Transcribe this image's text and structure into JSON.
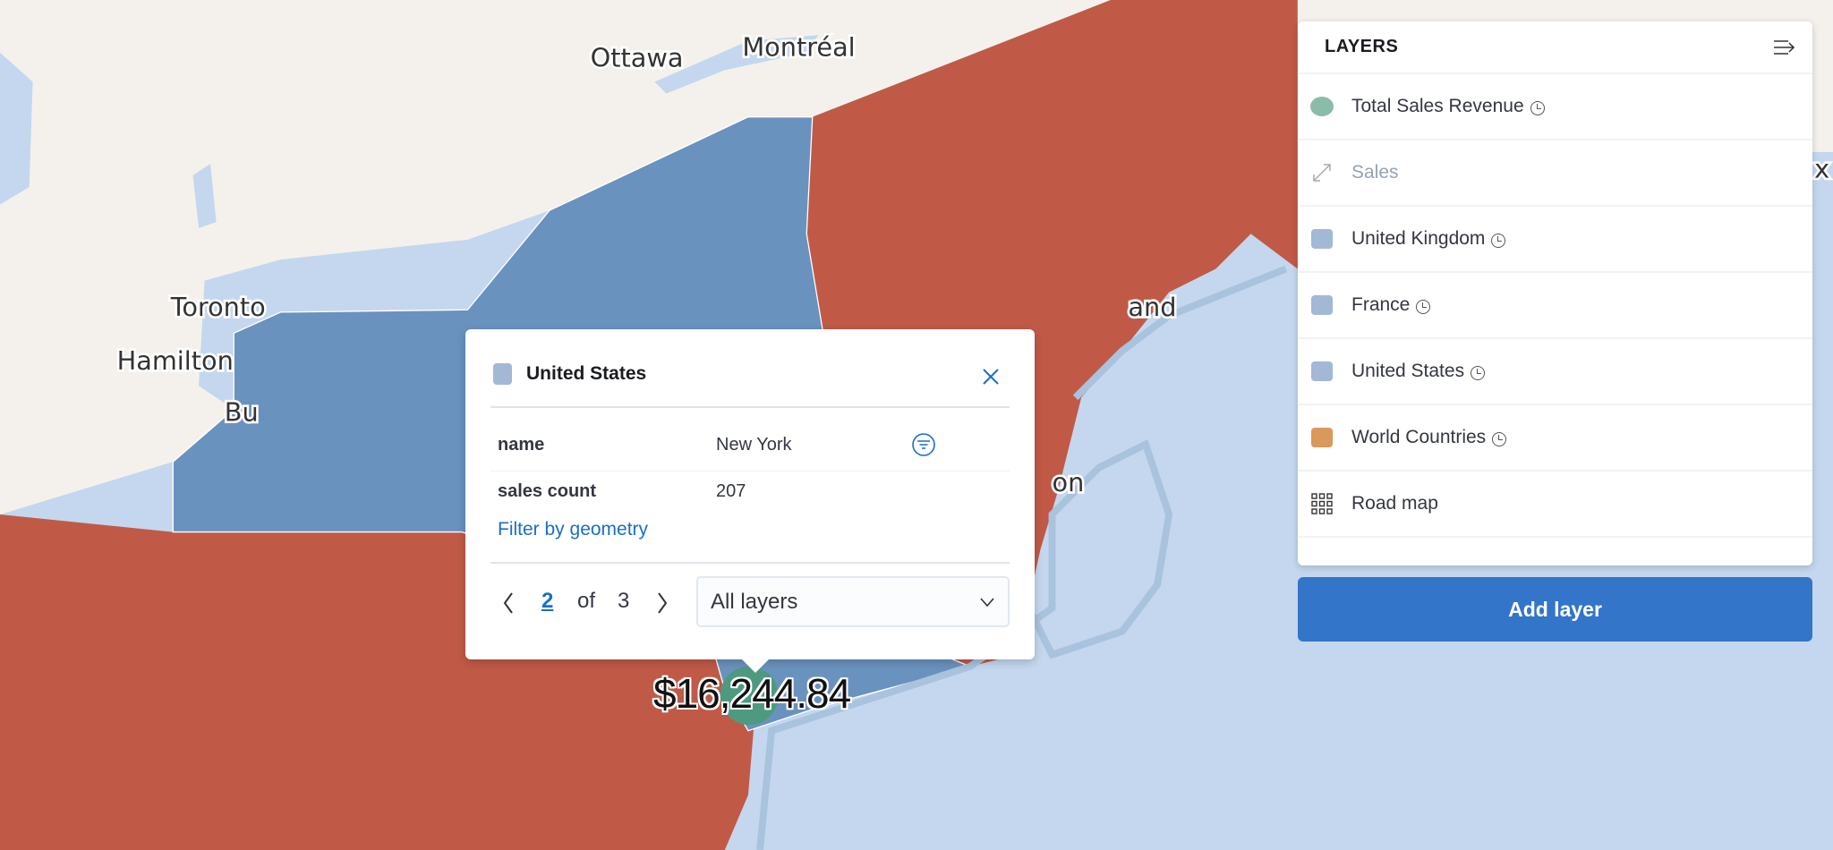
{
  "colors": {
    "water": "#c4d7ee",
    "land": "#f4f1ec",
    "red_region": "#c05a47",
    "ny_region": "#6a92be",
    "accent": "#3375c8",
    "link": "#1a6fc4"
  },
  "map": {
    "cities": [
      "Ottawa",
      "Montréal",
      "Toronto",
      "Hamilton",
      "Bu",
      "and",
      "on",
      "x"
    ],
    "label": "$16,244.84"
  },
  "layers_panel": {
    "title": "LAYERS",
    "collapse_icon": "collapse-right-icon",
    "items": [
      {
        "label": "Total Sales Revenue",
        "icon": "circle",
        "color": "#8bbcaa",
        "time_aware": true
      },
      {
        "label": "Sales",
        "icon": "resize-icon",
        "disabled": true
      },
      {
        "label": "United Kingdom",
        "icon": "square",
        "color": "#a2b8d5",
        "time_aware": true
      },
      {
        "label": "France",
        "icon": "square",
        "color": "#a2b8d5",
        "time_aware": true
      },
      {
        "label": "United States",
        "icon": "square",
        "color": "#a2b8d5",
        "time_aware": true
      },
      {
        "label": "World Countries",
        "icon": "square",
        "color": "#d9995b",
        "time_aware": true
      },
      {
        "label": "Road map",
        "icon": "grid-icon"
      }
    ],
    "add_layer": "Add layer"
  },
  "popup": {
    "title": "United States",
    "rows": [
      {
        "key": "name",
        "value": "New York"
      },
      {
        "key": "sales count",
        "value": "207"
      }
    ],
    "filter_link": "Filter by geometry",
    "page": "2",
    "of": "of",
    "total": "3",
    "layer_select": "All layers"
  }
}
